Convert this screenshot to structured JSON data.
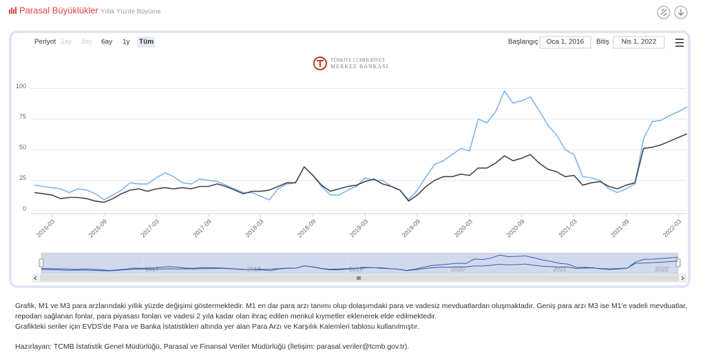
{
  "header": {
    "title": "Parasal Büyüklükler",
    "subtitle": "Yıllık Yüzde Büyüme"
  },
  "controls": {
    "period_label": "Periyot",
    "buttons": [
      "1ay",
      "3ay",
      "6ay",
      "1y",
      "Tüm"
    ],
    "start_label": "Başlangıç",
    "start_value": "Oca 1, 2016",
    "end_label": "Bitiş",
    "end_value": "Nis 1, 2022"
  },
  "logo": {
    "line1": "TÜRKİYE CUMHURİYET",
    "line2": "MERKEZ BANKASI"
  },
  "chart_data": {
    "type": "line",
    "x": [
      "2016-01",
      "2016-02",
      "2016-03",
      "2016-04",
      "2016-05",
      "2016-06",
      "2016-07",
      "2016-08",
      "2016-09",
      "2016-10",
      "2016-11",
      "2016-12",
      "2017-01",
      "2017-02",
      "2017-03",
      "2017-04",
      "2017-05",
      "2017-06",
      "2017-07",
      "2017-08",
      "2017-09",
      "2017-10",
      "2017-11",
      "2017-12",
      "2018-01",
      "2018-02",
      "2018-03",
      "2018-04",
      "2018-05",
      "2018-06",
      "2018-07",
      "2018-08",
      "2018-09",
      "2018-10",
      "2018-11",
      "2018-12",
      "2019-01",
      "2019-02",
      "2019-03",
      "2019-04",
      "2019-05",
      "2019-06",
      "2019-07",
      "2019-08",
      "2019-09",
      "2019-10",
      "2019-11",
      "2019-12",
      "2020-01",
      "2020-02",
      "2020-03",
      "2020-04",
      "2020-05",
      "2020-06",
      "2020-07",
      "2020-08",
      "2020-09",
      "2020-10",
      "2020-11",
      "2020-12",
      "2021-01",
      "2021-02",
      "2021-03",
      "2021-04",
      "2021-05",
      "2021-06",
      "2021-07",
      "2021-08",
      "2021-09",
      "2021-10",
      "2021-11",
      "2021-12",
      "2022-01",
      "2022-02",
      "2022-03",
      "2022-04"
    ],
    "series": [
      {
        "color": "#7cb5ec",
        "values": [
          21,
          20,
          19,
          18,
          15,
          18,
          17,
          14,
          9,
          13,
          17,
          23,
          22,
          22,
          27,
          31,
          28,
          23,
          22,
          26,
          25,
          24,
          21,
          18,
          15,
          15,
          12,
          9,
          18,
          22,
          23,
          36,
          29,
          20,
          13,
          13,
          17,
          20,
          27,
          25,
          25,
          20,
          17,
          9,
          17,
          28,
          38,
          41,
          46,
          51,
          49,
          75,
          72,
          81,
          98,
          88,
          90,
          93,
          82,
          70,
          62,
          50,
          46,
          28,
          27,
          25,
          18,
          15,
          18,
          22,
          59,
          73,
          74,
          78,
          81,
          85
        ]
      },
      {
        "color": "#434348",
        "values": [
          15,
          14,
          13,
          10,
          11,
          11,
          10,
          8,
          7,
          10,
          14,
          17,
          18,
          16,
          18,
          19,
          18,
          19,
          18,
          20,
          20,
          22,
          20,
          17,
          14,
          16,
          16,
          17,
          20,
          23,
          23,
          36,
          29,
          21,
          16,
          18,
          20,
          21,
          24,
          26,
          22,
          20,
          17,
          8,
          13,
          20,
          25,
          28,
          28,
          30,
          29,
          35,
          35,
          39,
          45,
          41,
          43,
          46,
          39,
          34,
          32,
          28,
          29,
          21,
          23,
          24,
          20,
          18,
          21,
          23,
          51,
          52,
          54,
          57,
          60,
          63
        ]
      }
    ],
    "ylim": [
      0,
      125
    ],
    "yticks": [
      0,
      25,
      50,
      75,
      100
    ],
    "grid": true,
    "xticks": [
      "2016-03",
      "2016-09",
      "2017-03",
      "2017-09",
      "2018-03",
      "2018-09",
      "2019-03",
      "2019-09",
      "2020-03",
      "2020-09",
      "2021-03",
      "2021-09",
      "2022-03"
    ],
    "navigator_labels": [
      "2017",
      "2018",
      "2019",
      "2020",
      "2021",
      "2022"
    ]
  },
  "footer": {
    "paragraphs": [
      "Grafik, M1 ve M3 para arzlarındaki yıllık yüzde değişimi göstermektedir. M1 en dar para arzı tanımı olup dolaşımdaki para ve vadesiz mevduatlardan oluşmaktadır.  Geniş para arzı M3 ise M1'e vadeli mevduatlar, repodan sağlanan fonlar, para piyasası fonları ve vadesi 2 yıla kadar olan ihraç edilen menkul kıymetler eklenerek elde edilmektedir.",
      "Grafikteki seriler için EVDS'de Para ve Banka İstatistikleri altında yer alan Para Arzı ve Karşılık Kalemleri tablosu kullanılmıştır.",
      "Hazırlayan: TCMB İstatistik Genel Müdürlüğü, Parasal ve Finansal Veriler Müdürlüğü (İletişim: parasal.veriler@tcmb.gov.tr)."
    ]
  }
}
